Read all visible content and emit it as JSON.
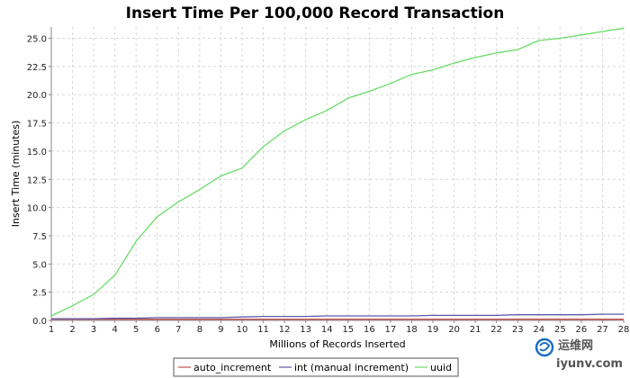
{
  "chart_data": {
    "type": "line",
    "title": "Insert Time Per 100,000 Record Transaction",
    "xlabel": "Millions of Records Inserted",
    "ylabel": "Insert Time (minutes)",
    "x": [
      1,
      2,
      3,
      4,
      5,
      6,
      7,
      8,
      9,
      10,
      11,
      12,
      13,
      14,
      15,
      16,
      17,
      18,
      19,
      20,
      21,
      22,
      23,
      24,
      25,
      26,
      27,
      28
    ],
    "x_ticks": [
      "1",
      "2",
      "3",
      "4",
      "5",
      "6",
      "7",
      "8",
      "9",
      "10",
      "11",
      "12",
      "13",
      "14",
      "15",
      "16",
      "17",
      "18",
      "19",
      "20",
      "21",
      "22",
      "23",
      "24",
      "25",
      "26",
      "27",
      "28"
    ],
    "y_ticks": [
      "0.0",
      "2.5",
      "5.0",
      "7.5",
      "10.0",
      "12.5",
      "15.0",
      "17.5",
      "20.0",
      "22.5",
      "25.0"
    ],
    "xlim": [
      1,
      28
    ],
    "ylim": [
      0,
      26
    ],
    "grid": true,
    "legend_position": "bottom",
    "series": [
      {
        "name": "auto_increment",
        "color": "#c0504d",
        "values": [
          0.1,
          0.1,
          0.1,
          0.1,
          0.1,
          0.1,
          0.1,
          0.1,
          0.1,
          0.1,
          0.1,
          0.1,
          0.1,
          0.1,
          0.1,
          0.1,
          0.1,
          0.1,
          0.1,
          0.1,
          0.1,
          0.1,
          0.1,
          0.1,
          0.1,
          0.1,
          0.1,
          0.1
        ]
      },
      {
        "name": "int (manual increment)",
        "color": "#5a5aa8",
        "values": [
          0.15,
          0.15,
          0.15,
          0.2,
          0.2,
          0.25,
          0.25,
          0.25,
          0.25,
          0.3,
          0.35,
          0.35,
          0.35,
          0.4,
          0.4,
          0.4,
          0.4,
          0.4,
          0.45,
          0.45,
          0.45,
          0.45,
          0.5,
          0.5,
          0.5,
          0.5,
          0.55,
          0.55
        ]
      },
      {
        "name": "uuid",
        "color": "#66dd66",
        "values": [
          0.4,
          1.3,
          2.3,
          4.0,
          7.0,
          9.2,
          10.5,
          11.6,
          12.8,
          13.5,
          15.4,
          16.8,
          17.8,
          18.6,
          19.7,
          20.3,
          21.0,
          21.8,
          22.2,
          22.8,
          23.3,
          23.7,
          24.0,
          24.8,
          25.0,
          25.3,
          25.6,
          25.9
        ]
      }
    ]
  },
  "watermark": {
    "brand": "运维网",
    "url": "iyunv.com"
  }
}
